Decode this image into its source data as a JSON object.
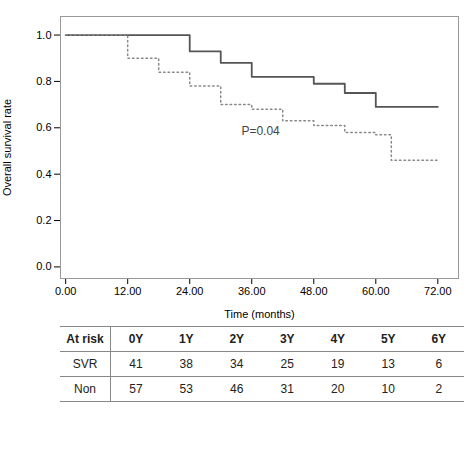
{
  "chart_data": {
    "type": "line",
    "xlabel": "Time (months)",
    "ylabel": "Overall survival rate",
    "xlim": [
      -1,
      76
    ],
    "ylim": [
      -0.05,
      1.08
    ],
    "xticks": [
      {
        "value": 0,
        "label": "0.00"
      },
      {
        "value": 12,
        "label": "12.00"
      },
      {
        "value": 24,
        "label": "24.00"
      },
      {
        "value": 36,
        "label": "36.00"
      },
      {
        "value": 48,
        "label": "48.00"
      },
      {
        "value": 60,
        "label": "60.00"
      },
      {
        "value": 72,
        "label": "72.00"
      }
    ],
    "yticks": [
      {
        "value": 0,
        "label": "0.0"
      },
      0.2,
      0.4,
      0.6,
      0.8,
      {
        "value": 1,
        "label": "1.0"
      }
    ],
    "series": [
      {
        "color": "#555555",
        "line_style": "solid",
        "x": [
          0,
          24,
          24,
          30,
          30,
          36,
          36,
          48,
          48,
          54,
          54,
          60,
          60,
          66,
          66,
          72
        ],
        "values": [
          1.0,
          1.0,
          0.93,
          0.93,
          0.88,
          0.88,
          0.82,
          0.82,
          0.79,
          0.79,
          0.75,
          0.75,
          0.69,
          0.69,
          0.69,
          0.69
        ]
      },
      {
        "color": "#888888",
        "line_style": "dotted",
        "x": [
          0,
          12,
          12,
          18,
          18,
          24,
          24,
          30,
          30,
          36,
          36,
          42,
          42,
          48,
          48,
          54,
          54,
          60,
          60,
          63,
          63,
          72
        ],
        "values": [
          1.0,
          1.0,
          0.9,
          0.9,
          0.84,
          0.84,
          0.78,
          0.78,
          0.7,
          0.7,
          0.68,
          0.68,
          0.63,
          0.63,
          0.61,
          0.61,
          0.58,
          0.58,
          0.57,
          0.57,
          0.46,
          0.46
        ]
      }
    ],
    "annotations": [
      {
        "text": "P=0.04",
        "x": 34,
        "y": 0.57,
        "color": "#444444"
      }
    ],
    "table": {
      "color": "#888888",
      "headers": [
        "At risk",
        "0Y",
        "1Y",
        "2Y",
        "3Y",
        "4Y",
        "5Y",
        "6Y"
      ],
      "rows": [
        {
          "label": "SVR",
          "values": [
            "41",
            "38",
            "34",
            "25",
            "19",
            "13",
            "6"
          ]
        },
        {
          "label": "Non",
          "values": [
            "57",
            "53",
            "46",
            "31",
            "20",
            "10",
            "2"
          ]
        }
      ]
    }
  }
}
